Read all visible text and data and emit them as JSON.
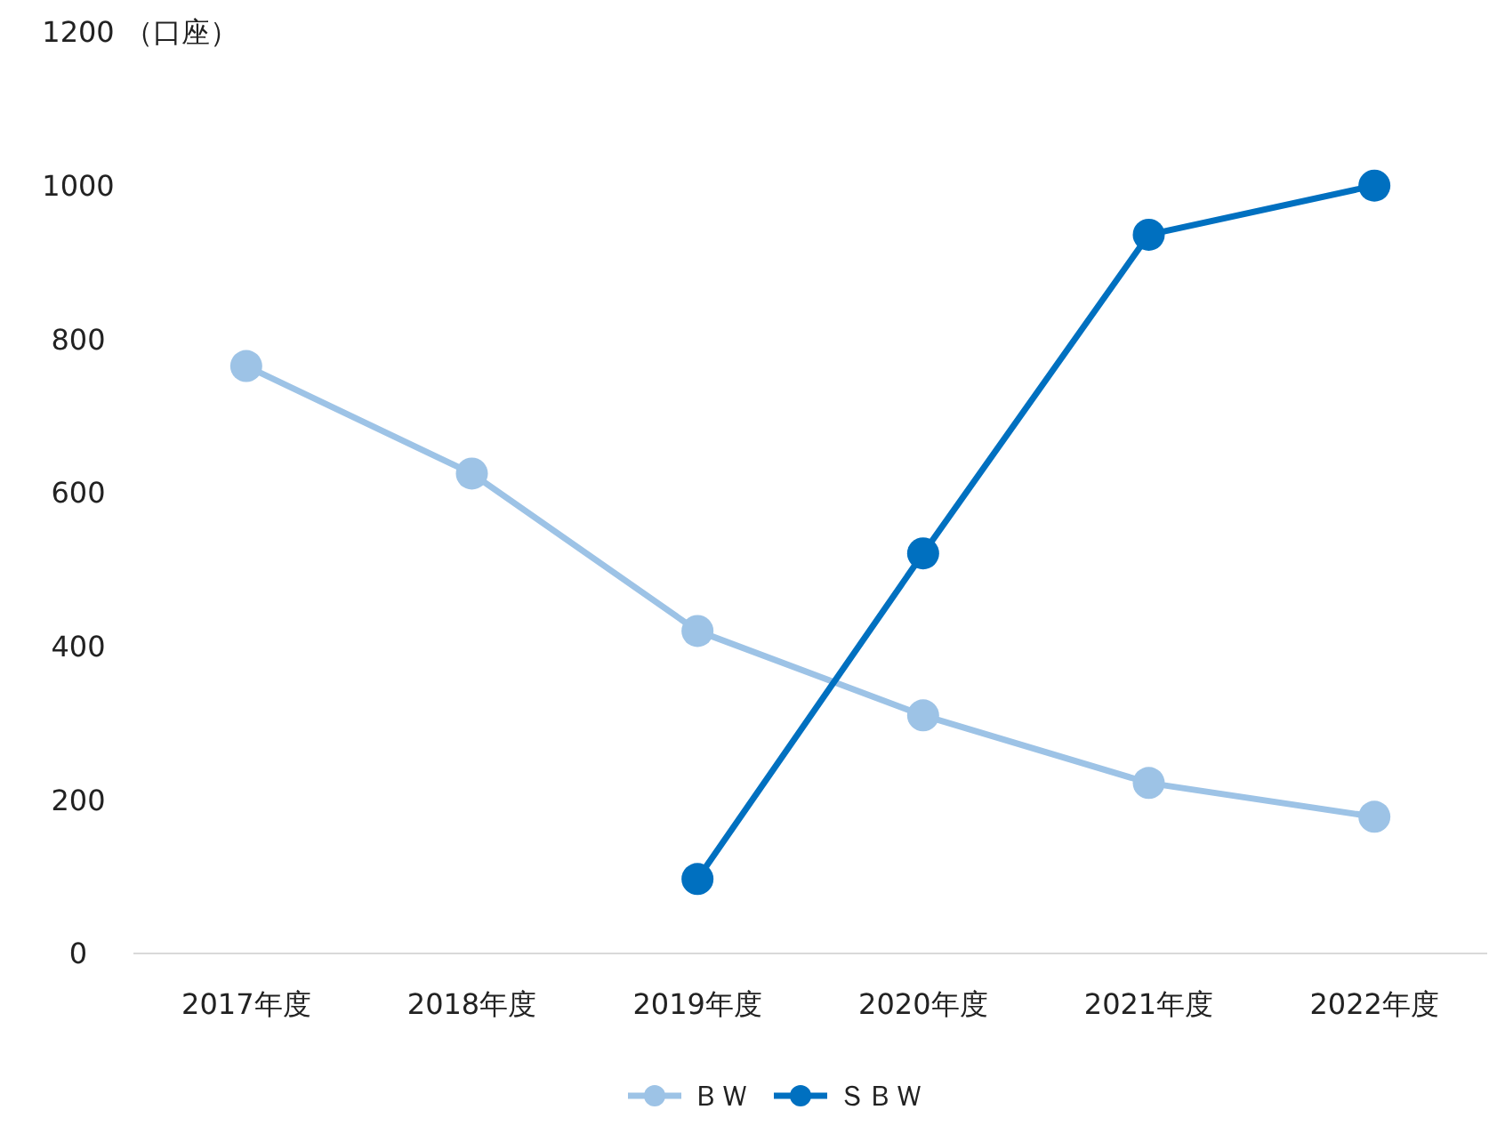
{
  "chart_data": {
    "type": "line",
    "ylabel": "（口座）",
    "categories": [
      "2017年度",
      "2018年度",
      "2019年度",
      "2020年度",
      "2021年度",
      "2022年度"
    ],
    "series": [
      {
        "name": "ＢＷ",
        "color": "#9dc3e6",
        "values": [
          765,
          625,
          420,
          310,
          222,
          178
        ]
      },
      {
        "name": "ＳＢＷ",
        "color": "#0070c0",
        "values": [
          null,
          null,
          97,
          521,
          936,
          1000
        ]
      }
    ],
    "ylim": [
      0,
      1200
    ],
    "yticks": [
      0,
      200,
      400,
      600,
      800,
      1000,
      1200
    ],
    "grid": false,
    "legend": "bottom",
    "marker": "circle",
    "line_style": "solid"
  }
}
